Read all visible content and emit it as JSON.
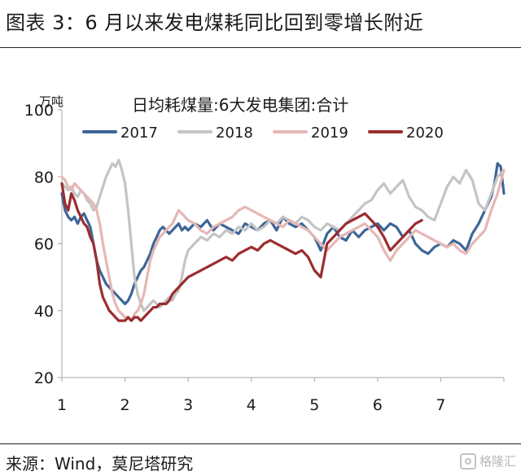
{
  "figure": {
    "title": "图表 3：6 月以来发电煤耗同比回到零增长附近",
    "source": "来源：Wind，莫尼塔研究",
    "watermark": "格隆汇"
  },
  "colors": {
    "2017": "#3d6696",
    "2018": "#c4c4c4",
    "2019": "#e6b7b5",
    "2020": "#9b2d2f",
    "axis": "#a6a6a6"
  },
  "chart_data": {
    "type": "line",
    "title": "日均耗煤量:6大发电集团:合计",
    "ylabel": "万吨",
    "ylim": [
      20,
      100
    ],
    "yticks": [
      "20",
      "40",
      "60",
      "80",
      "100"
    ],
    "xlim": [
      1,
      8
    ],
    "xticks": [
      "1",
      "2",
      "3",
      "4",
      "5",
      "6",
      "7"
    ],
    "legend_position": "top",
    "series": [
      {
        "name": "2017",
        "x": [
          1.0,
          1.05,
          1.1,
          1.15,
          1.2,
          1.25,
          1.3,
          1.35,
          1.4,
          1.45,
          1.5,
          1.55,
          1.6,
          1.65,
          1.7,
          1.75,
          1.8,
          1.85,
          1.9,
          1.95,
          2.0,
          2.05,
          2.1,
          2.15,
          2.2,
          2.25,
          2.3,
          2.35,
          2.4,
          2.45,
          2.5,
          2.55,
          2.6,
          2.65,
          2.7,
          2.75,
          2.8,
          2.85,
          2.9,
          2.95,
          3.0,
          3.1,
          3.2,
          3.3,
          3.4,
          3.5,
          3.6,
          3.7,
          3.8,
          3.9,
          4.0,
          4.1,
          4.2,
          4.3,
          4.4,
          4.5,
          4.6,
          4.7,
          4.8,
          4.9,
          5.0,
          5.1,
          5.2,
          5.3,
          5.4,
          5.5,
          5.6,
          5.7,
          5.8,
          5.9,
          6.0,
          6.1,
          6.2,
          6.3,
          6.4,
          6.5,
          6.6,
          6.7,
          6.8,
          6.9,
          7.0,
          7.1,
          7.2,
          7.3,
          7.4,
          7.5,
          7.6,
          7.7,
          7.8,
          7.85,
          7.9,
          7.95,
          8.0
        ],
        "values": [
          75,
          70,
          68,
          67,
          68,
          66,
          68,
          69,
          67,
          65,
          60,
          55,
          52,
          50,
          48,
          47,
          46,
          45,
          44,
          43,
          42,
          43,
          45,
          48,
          50,
          52,
          53,
          55,
          57,
          60,
          62,
          64,
          65,
          64,
          63,
          64,
          65,
          66,
          64,
          65,
          64,
          66,
          65,
          67,
          64,
          66,
          65,
          64,
          63,
          66,
          65,
          64,
          66,
          67,
          64,
          68,
          66,
          65,
          66,
          64,
          62,
          58,
          63,
          65,
          62,
          61,
          64,
          62,
          64,
          65,
          66,
          64,
          66,
          65,
          62,
          64,
          60,
          58,
          57,
          59,
          60,
          59,
          61,
          60,
          58,
          63,
          66,
          70,
          74,
          78,
          84,
          83,
          75
        ]
      },
      {
        "name": "2018",
        "x": [
          1.0,
          1.05,
          1.1,
          1.15,
          1.2,
          1.25,
          1.3,
          1.35,
          1.4,
          1.45,
          1.5,
          1.55,
          1.6,
          1.65,
          1.7,
          1.75,
          1.8,
          1.85,
          1.9,
          1.95,
          2.0,
          2.05,
          2.1,
          2.15,
          2.2,
          2.25,
          2.3,
          2.35,
          2.4,
          2.45,
          2.5,
          2.55,
          2.6,
          2.65,
          2.7,
          2.75,
          2.8,
          2.85,
          2.9,
          2.95,
          3.0,
          3.1,
          3.2,
          3.3,
          3.4,
          3.5,
          3.6,
          3.7,
          3.8,
          3.9,
          4.0,
          4.1,
          4.2,
          4.3,
          4.4,
          4.5,
          4.6,
          4.7,
          4.8,
          4.9,
          5.0,
          5.1,
          5.2,
          5.3,
          5.4,
          5.5,
          5.6,
          5.7,
          5.8,
          5.9,
          6.0,
          6.1,
          6.2,
          6.3,
          6.4,
          6.5,
          6.6,
          6.7,
          6.8,
          6.9,
          7.0,
          7.1,
          7.2,
          7.3,
          7.4,
          7.5,
          7.6,
          7.7,
          7.8,
          7.9,
          8.0
        ],
        "values": [
          78,
          77,
          76,
          77,
          75,
          74,
          76,
          75,
          73,
          72,
          70,
          71,
          74,
          77,
          80,
          82,
          84,
          83,
          85,
          82,
          78,
          70,
          60,
          50,
          45,
          42,
          40,
          41,
          42,
          43,
          42,
          41,
          42,
          43,
          44,
          43,
          45,
          46,
          50,
          55,
          58,
          60,
          62,
          61,
          63,
          62,
          64,
          63,
          65,
          64,
          66,
          64,
          65,
          67,
          66,
          68,
          67,
          66,
          68,
          67,
          65,
          64,
          66,
          65,
          64,
          66,
          68,
          70,
          72,
          73,
          76,
          78,
          75,
          77,
          79,
          74,
          71,
          70,
          68,
          67,
          72,
          77,
          80,
          78,
          82,
          79,
          72,
          70,
          75,
          80,
          82
        ]
      },
      {
        "name": "2019",
        "x": [
          1.0,
          1.05,
          1.1,
          1.15,
          1.2,
          1.25,
          1.3,
          1.35,
          1.4,
          1.45,
          1.5,
          1.55,
          1.6,
          1.65,
          1.7,
          1.75,
          1.8,
          1.85,
          1.9,
          1.95,
          2.0,
          2.05,
          2.1,
          2.15,
          2.2,
          2.25,
          2.3,
          2.35,
          2.4,
          2.45,
          2.5,
          2.55,
          2.6,
          2.65,
          2.7,
          2.75,
          2.8,
          2.85,
          2.9,
          2.95,
          3.0,
          3.1,
          3.2,
          3.3,
          3.4,
          3.5,
          3.6,
          3.7,
          3.8,
          3.9,
          4.0,
          4.1,
          4.2,
          4.3,
          4.4,
          4.5,
          4.6,
          4.7,
          4.8,
          4.9,
          5.0,
          5.1,
          5.2,
          5.3,
          5.4,
          5.5,
          5.6,
          5.7,
          5.8,
          5.9,
          6.0,
          6.1,
          6.2,
          6.3,
          6.4,
          6.5,
          6.6,
          6.7,
          6.8,
          6.9,
          7.0,
          7.1,
          7.2,
          7.3,
          7.4,
          7.5,
          7.6,
          7.7,
          7.8,
          7.9,
          8.0
        ],
        "values": [
          80,
          79,
          77,
          76,
          78,
          77,
          76,
          75,
          74,
          73,
          72,
          70,
          66,
          60,
          55,
          50,
          45,
          42,
          40,
          39,
          38,
          38,
          37,
          39,
          40,
          42,
          45,
          50,
          55,
          58,
          60,
          62,
          63,
          64,
          65,
          66,
          68,
          70,
          69,
          68,
          67,
          66,
          64,
          63,
          65,
          66,
          67,
          68,
          70,
          71,
          70,
          69,
          68,
          67,
          66,
          65,
          67,
          66,
          65,
          64,
          62,
          60,
          58,
          60,
          62,
          63,
          64,
          65,
          66,
          64,
          62,
          58,
          55,
          58,
          60,
          62,
          64,
          63,
          62,
          61,
          60,
          59,
          60,
          58,
          57,
          60,
          62,
          64,
          70,
          75,
          82
        ]
      },
      {
        "name": "2020",
        "x": [
          1.0,
          1.05,
          1.1,
          1.15,
          1.2,
          1.25,
          1.3,
          1.35,
          1.4,
          1.45,
          1.5,
          1.55,
          1.6,
          1.65,
          1.7,
          1.75,
          1.8,
          1.85,
          1.9,
          1.95,
          2.0,
          2.05,
          2.1,
          2.15,
          2.2,
          2.25,
          2.3,
          2.35,
          2.4,
          2.45,
          2.5,
          2.55,
          2.6,
          2.65,
          2.7,
          2.75,
          2.8,
          2.85,
          2.9,
          2.95,
          3.0,
          3.1,
          3.2,
          3.3,
          3.4,
          3.5,
          3.6,
          3.7,
          3.8,
          3.9,
          4.0,
          4.1,
          4.2,
          4.3,
          4.4,
          4.5,
          4.6,
          4.7,
          4.8,
          4.9,
          5.0,
          5.1,
          5.2,
          5.3,
          5.4,
          5.5,
          5.6,
          5.7,
          5.8,
          5.9,
          6.0,
          6.1,
          6.2,
          6.3,
          6.4,
          6.5,
          6.6,
          6.7
        ],
        "values": [
          78,
          72,
          70,
          75,
          73,
          70,
          68,
          66,
          65,
          62,
          60,
          55,
          48,
          44,
          42,
          40,
          39,
          38,
          37,
          37,
          37,
          38,
          37,
          38,
          38,
          37,
          38,
          39,
          40,
          41,
          41,
          42,
          42,
          42,
          43,
          45,
          46,
          47,
          48,
          49,
          50,
          51,
          52,
          53,
          54,
          55,
          56,
          55,
          57,
          58,
          59,
          58,
          60,
          61,
          60,
          59,
          58,
          57,
          58,
          56,
          52,
          50,
          60,
          62,
          64,
          66,
          67,
          68,
          69,
          67,
          65,
          62,
          58,
          60,
          62,
          64,
          66,
          67
        ]
      }
    ]
  }
}
